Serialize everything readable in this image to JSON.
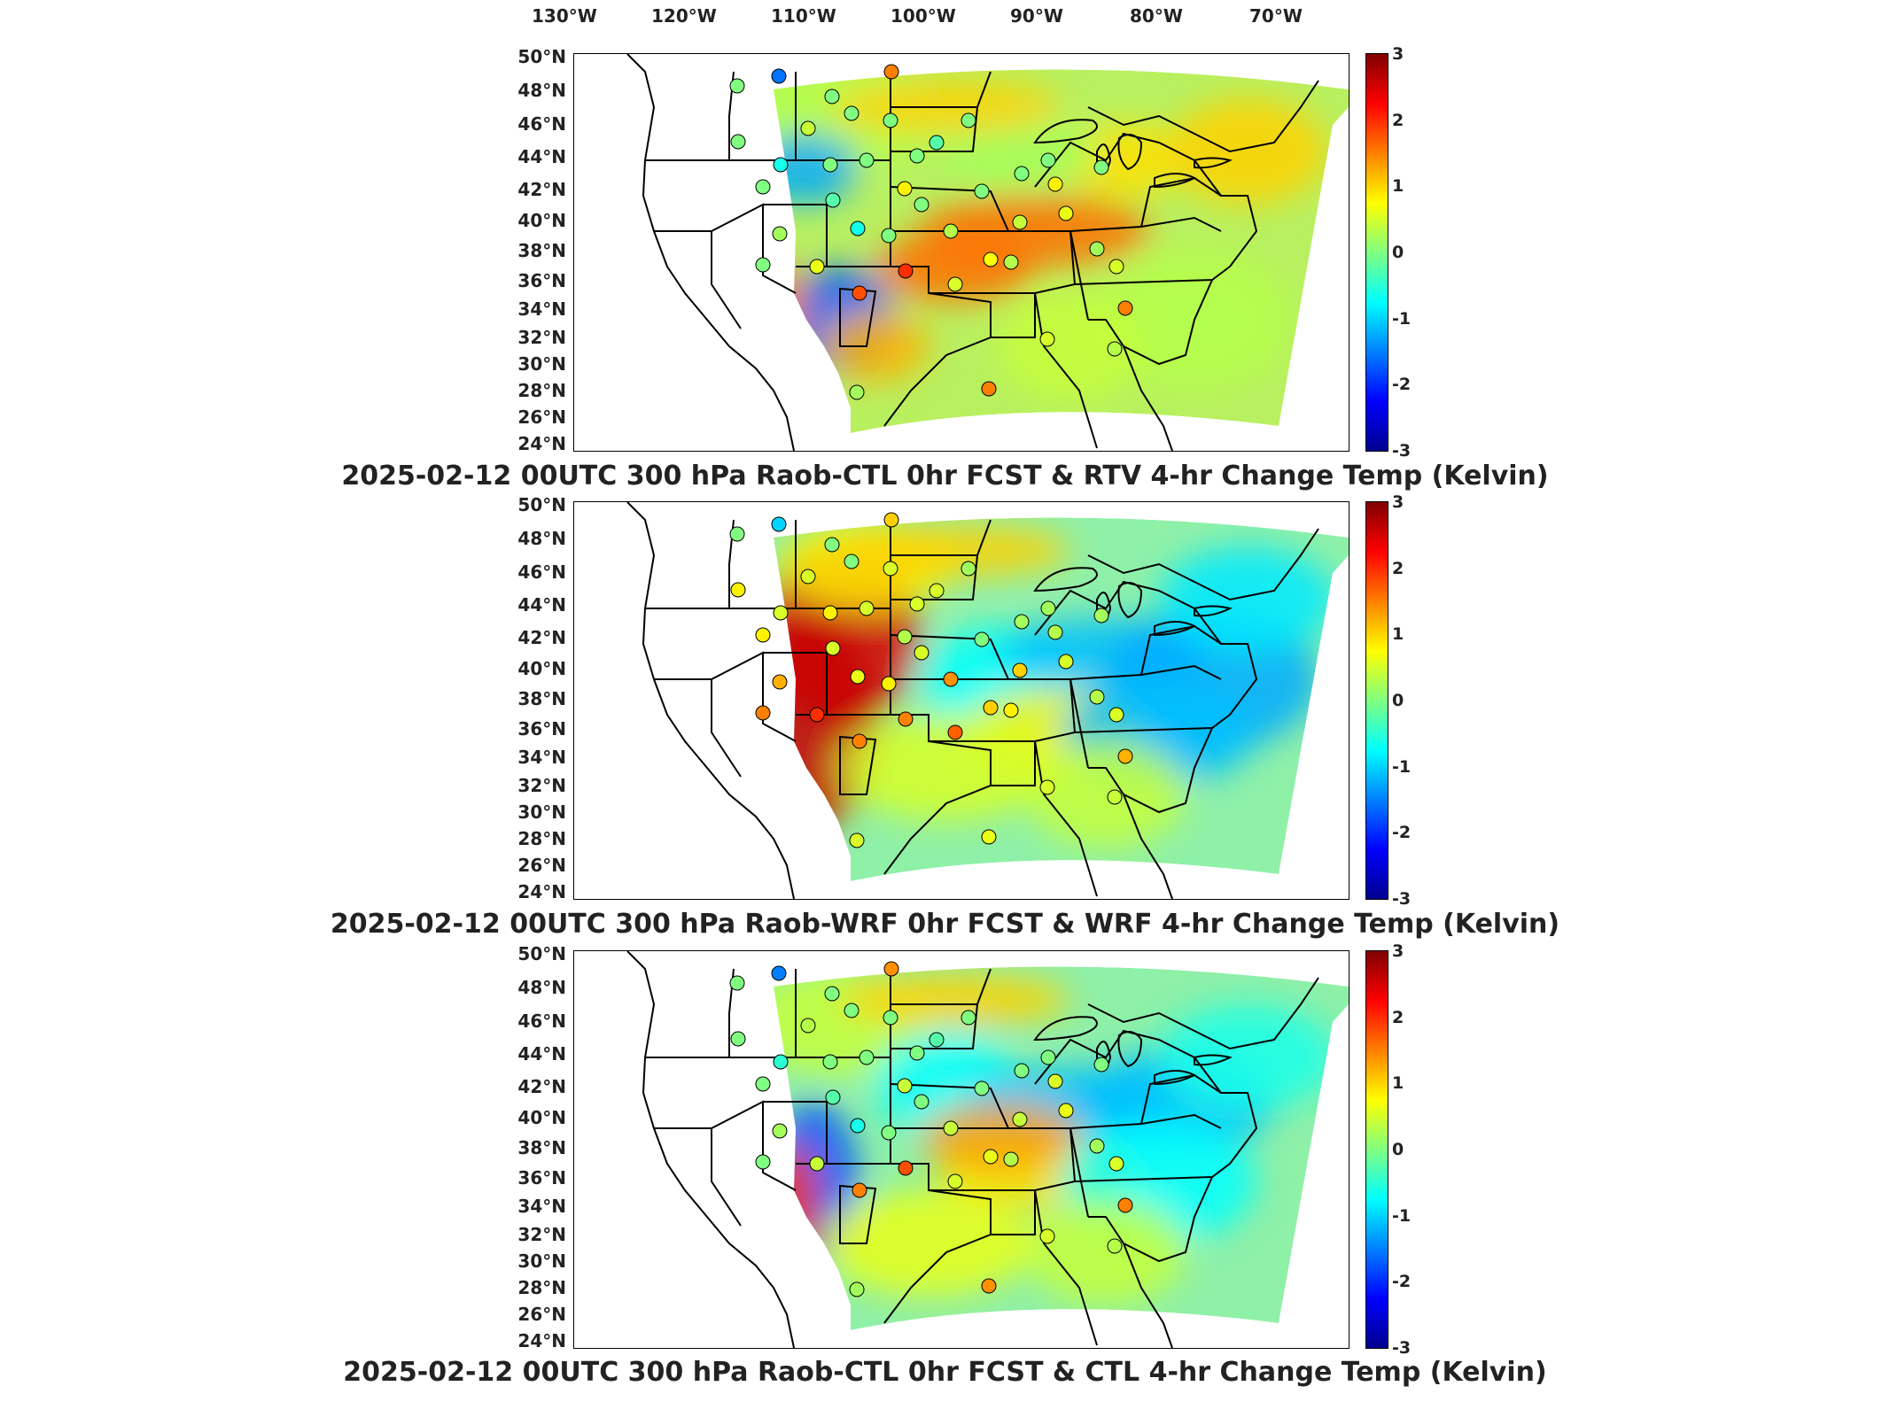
{
  "longitude_axis": {
    "labels": [
      "130°W",
      "120°W",
      "110°W",
      "100°W",
      "90°W",
      "80°W",
      "70°W"
    ]
  },
  "latitude_axis": {
    "labels": [
      "50°N",
      "48°N",
      "46°N",
      "44°N",
      "42°N",
      "40°N",
      "38°N",
      "36°N",
      "34°N",
      "32°N",
      "30°N",
      "28°N",
      "26°N",
      "24°N"
    ]
  },
  "colorbar": {
    "ticks": [
      "3",
      "2",
      "1",
      "0",
      "-1",
      "-2",
      "-3"
    ],
    "colormap": [
      "#00008f",
      "#0000ff",
      "#0080ff",
      "#00ffff",
      "#80ff80",
      "#ffff00",
      "#ff8000",
      "#ff0000",
      "#800000"
    ]
  },
  "panels": [
    {
      "title": "2025-02-12 00UTC 300 hPa Raob-CTL 0hr FCST & RTV 4-hr Change Temp (Kelvin)"
    },
    {
      "title": "2025-02-12 00UTC 300 hPa Raob-WRF 0hr FCST & WRF 4-hr Change Temp (Kelvin)"
    },
    {
      "title": "2025-02-12 00UTC 300 hPa Raob-CTL 0hr FCST & CTL 4-hr Change Temp (Kelvin)"
    }
  ]
}
